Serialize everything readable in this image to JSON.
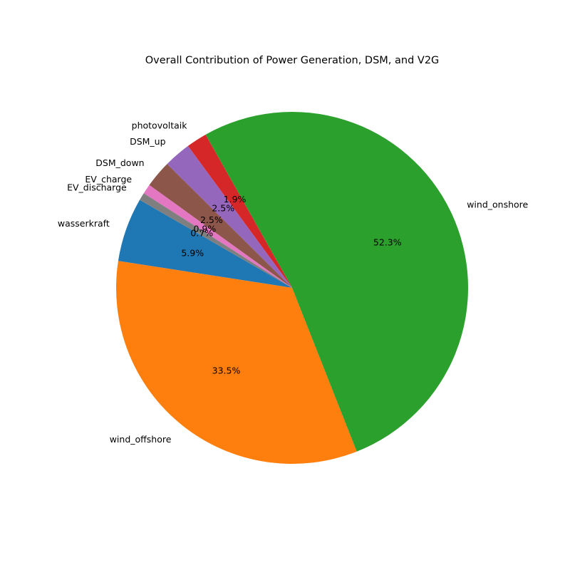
{
  "chart_data": {
    "type": "pie",
    "title": "Overall Contribution of Power Generation, DSM, and V2G",
    "start_angle_deg": 150,
    "direction": "counterclockwise",
    "slices": [
      {
        "label": "wasserkraft",
        "value": 5.9,
        "pct_label": "5.9%",
        "color": "#1f77b4"
      },
      {
        "label": "wind_offshore",
        "value": 33.5,
        "pct_label": "33.5%",
        "color": "#ff7f0e"
      },
      {
        "label": "wind_onshore",
        "value": 52.3,
        "pct_label": "52.3%",
        "color": "#2ca02c"
      },
      {
        "label": "photovoltaik",
        "value": 1.9,
        "pct_label": "1.9%",
        "color": "#d62728"
      },
      {
        "label": "DSM_up",
        "value": 2.5,
        "pct_label": "2.5%",
        "color": "#9467bd"
      },
      {
        "label": "DSM_down",
        "value": 2.5,
        "pct_label": "2.5%",
        "color": "#8c564b"
      },
      {
        "label": "EV_charge",
        "value": 0.9,
        "pct_label": "0.9%",
        "color": "#e377c2"
      },
      {
        "label": "EV_discharge",
        "value": 0.7,
        "pct_label": "0.7%",
        "color": "#7f7f7f"
      }
    ]
  }
}
